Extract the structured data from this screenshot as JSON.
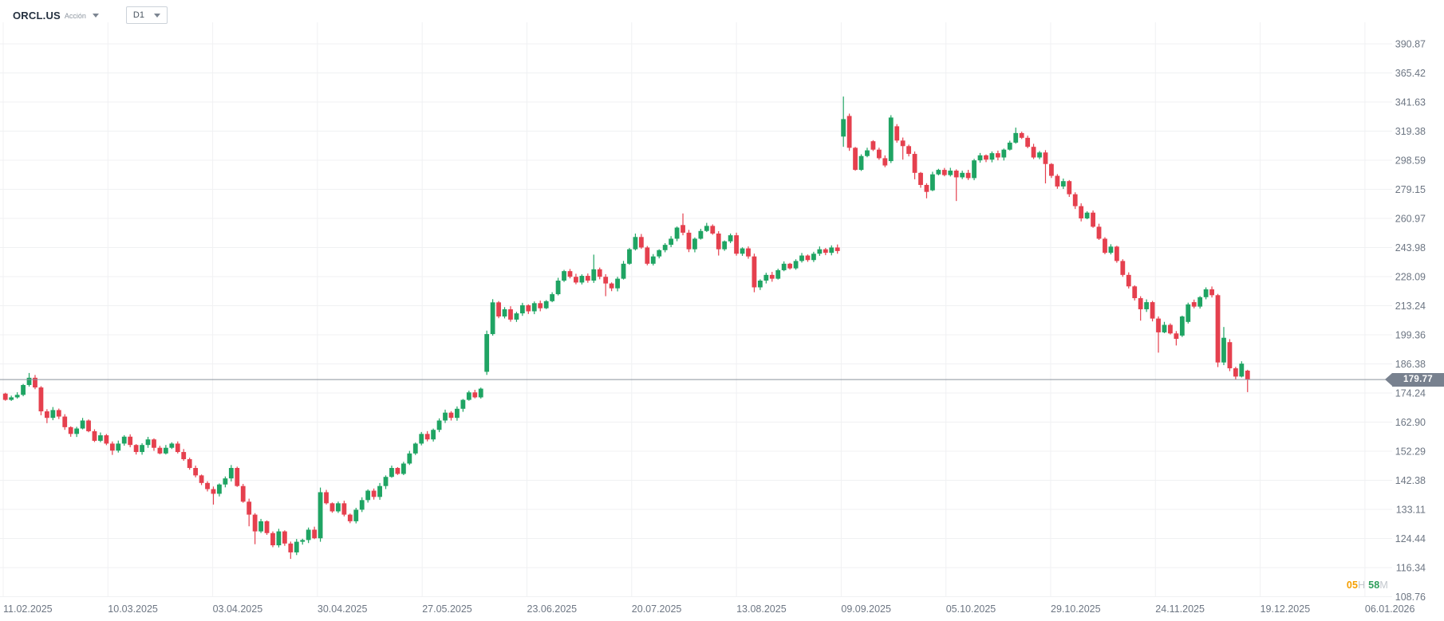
{
  "header": {
    "symbol": "ORCL.US",
    "instrument_type": "Acción",
    "timeframe": "D1"
  },
  "price_tag": {
    "value": "179.77"
  },
  "session_countdown": {
    "hours": "05",
    "hours_suffix": "H",
    "minutes": "58",
    "minutes_suffix": "M"
  },
  "colors": {
    "bull": "#1fa463",
    "bear": "#e5404e",
    "grid": "#f0f1f3",
    "axis_text": "#6d7683",
    "price_line": "#8b939e",
    "price_tag_bg": "#78818f",
    "countdown_hours": "#f59f00",
    "countdown_minutes": "#2e9e5b",
    "countdown_suffix": "#c2c7cd"
  },
  "chart_data": {
    "type": "candlestick",
    "symbol": "ORCL.US",
    "timeframe": "D1",
    "scale": "logarithmic",
    "current_price": 179.77,
    "y_axis_labels": [
      "390.87",
      "365.42",
      "341.63",
      "319.38",
      "298.59",
      "279.15",
      "260.97",
      "243.98",
      "228.09",
      "213.24",
      "199.36",
      "186.38",
      "174.24",
      "162.90",
      "152.29",
      "142.38",
      "133.11",
      "124.44",
      "116.34",
      "108.76"
    ],
    "x_axis_labels": [
      "11.02.2025",
      "10.03.2025",
      "03.04.2025",
      "30.04.2025",
      "27.05.2025",
      "23.06.2025",
      "20.07.2025",
      "13.08.2025",
      "09.09.2025",
      "05.10.2025",
      "29.10.2025",
      "24.11.2025",
      "19.12.2025",
      "06.01.2026"
    ],
    "extremes": {
      "high": 346.0,
      "high_date_near": "09.09.2025",
      "low": 118.7,
      "low_date_near": "mid-04.2025"
    },
    "candles": {
      "first_open": 174.0,
      "closes": [
        171.5,
        172.5,
        173.5,
        177.5,
        180.5,
        176.5,
        167.0,
        164.5,
        167.5,
        165.0,
        161.0,
        158.5,
        160.5,
        163.5,
        159.5,
        156.0,
        158.0,
        155.0,
        152.5,
        155.0,
        157.5,
        154.5,
        152.0,
        154.5,
        156.5,
        153.5,
        151.5,
        153.5,
        155.0,
        152.0,
        149.5,
        146.5,
        144.0,
        141.5,
        139.5,
        138.0,
        141.0,
        143.0,
        146.5,
        140.5,
        135.5,
        131.5,
        126.5,
        129.5,
        126.0,
        122.5,
        126.5,
        123.0,
        120.5,
        123.5,
        124.0,
        127.0,
        124.5,
        138.5,
        135.0,
        132.5,
        135.0,
        131.5,
        129.5,
        133.0,
        136.0,
        139.0,
        137.0,
        140.5,
        143.5,
        146.5,
        144.5,
        148.0,
        151.5,
        155.0,
        158.5,
        156.5,
        160.0,
        163.5,
        166.5,
        164.5,
        168.0,
        171.5,
        174.5,
        172.5,
        176.0,
        199.7,
        214.9,
        208.0,
        211.5,
        206.5,
        209.5,
        213.5,
        210.5,
        214.5,
        212.0,
        215.5,
        219.0,
        226.0,
        231.0,
        228.0,
        225.0,
        228.5,
        226.0,
        232.0,
        228.0,
        224.5,
        222.0,
        227.0,
        235.0,
        243.0,
        250.0,
        244.0,
        235.0,
        239.0,
        242.5,
        245.5,
        249.0,
        255.5,
        252.5,
        243.0,
        249.0,
        253.5,
        256.5,
        252.0,
        243.0,
        247.5,
        251.0,
        240.5,
        243.5,
        239.0,
        222.5,
        226.0,
        229.0,
        227.0,
        231.5,
        235.0,
        232.5,
        236.5,
        239.5,
        237.0,
        240.5,
        243.0,
        241.0,
        244.0,
        242.0,
        328.4,
        307.3,
        292.0,
        301.5,
        305.5,
        306.0,
        300.0,
        295.0,
        329.6,
        312.5,
        308.5,
        303.0,
        290.0,
        282.0,
        277.5,
        289.0,
        292.0,
        288.5,
        291.5,
        287.0,
        290.0,
        286.5,
        298.5,
        302.0,
        299.0,
        303.5,
        300.5,
        306.0,
        311.0,
        318.0,
        314.5,
        308.0,
        300.5,
        304.0,
        296.0,
        288.0,
        281.0,
        284.5,
        276.0,
        268.5,
        261.0,
        264.5,
        256.0,
        249.0,
        241.0,
        244.5,
        236.5,
        229.0,
        223.0,
        217.0,
        211.5,
        215.0,
        207.0,
        200.5,
        204.0,
        200.0,
        197.5,
        208.0,
        213.9,
        212.8,
        217.5,
        221.5,
        218.5,
        187.0,
        198.0,
        184.5,
        181.0,
        186.5,
        179.77
      ],
      "open_overrides": {
        "81": 183.0,
        "114": 257.0,
        "141": 315.4,
        "142": 330.8,
        "146": 312.0,
        "149": 298.0,
        "150": 323.0,
        "156": 278.5,
        "198": 199.0,
        "199": 205.4,
        "200": 215.0,
        "206": 196.0,
        "209": 183.5
      },
      "wick_overrides": {
        "4": [
          182.5,
          null
        ],
        "6": [
          null,
          165.5
        ],
        "7": [
          null,
          162.5
        ],
        "18": [
          null,
          151.0
        ],
        "35": [
          null,
          134.6
        ],
        "38": [
          147.5,
          null
        ],
        "41": [
          null,
          128.0
        ],
        "42": [
          null,
          122.8
        ],
        "48": [
          null,
          118.7
        ],
        "53": [
          140.0,
          123.5
        ],
        "81": [
          201.3,
          181.7
        ],
        "82": [
          216.5,
          null
        ],
        "99": [
          240.0,
          null
        ],
        "101": [
          null,
          218.0
        ],
        "106": [
          252.0,
          null
        ],
        "114": [
          264.0,
          251.0
        ],
        "120": [
          null,
          239.5
        ],
        "126": [
          null,
          220.0
        ],
        "141": [
          346.0,
          308.0
        ],
        "149": [
          331.4,
          null
        ],
        "151": [
          null,
          299.0
        ],
        "153": [
          null,
          285.7
        ],
        "155": [
          null,
          273.4
        ],
        "160": [
          null,
          271.7
        ],
        "170": [
          322.0,
          null
        ],
        "175": [
          null,
          283.0
        ],
        "191": [
          null,
          206.0
        ],
        "194": [
          null,
          191.3
        ],
        "197": [
          null,
          194.5
        ],
        "204": [
          null,
          185.0
        ],
        "205": [
          203.0,
          null
        ],
        "209": [
          null,
          174.6
        ]
      }
    }
  }
}
